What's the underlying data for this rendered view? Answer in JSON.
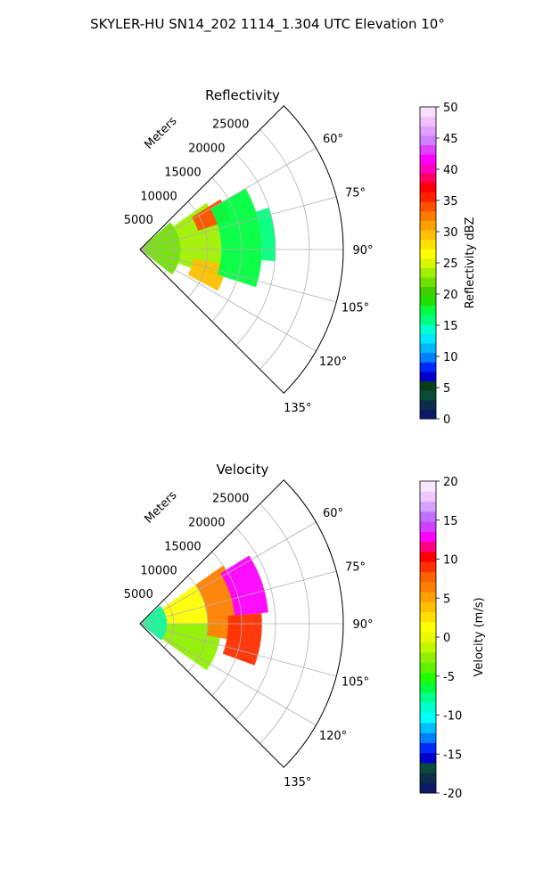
{
  "suptitle": "SKYLER-HU  SN14_202  1114_1.304 UTC Elevation 10°",
  "colors": {
    "refl_scale": [
      "#0a1a66",
      "#0b2e4a",
      "#0c4a3a",
      "#0a3f1a",
      "#0000c8",
      "#0028ff",
      "#0080ff",
      "#00b8ff",
      "#00e6ff",
      "#00ffd0",
      "#00ff80",
      "#00ff40",
      "#20e000",
      "#40d000",
      "#70e000",
      "#a0f000",
      "#d8f800",
      "#ffff00",
      "#ffe000",
      "#ffc000",
      "#ffa000",
      "#ff7800",
      "#ff5000",
      "#ff2000",
      "#ff0000",
      "#ff0060",
      "#ff00c0",
      "#ff00ff",
      "#e040ff",
      "#d080ff",
      "#e0a0ff",
      "#f0c0ff",
      "#f8e0ff"
    ],
    "vel_scale": [
      "#0a1a66",
      "#0b2e4a",
      "#0c4a3a",
      "#0000c8",
      "#0028ff",
      "#0080ff",
      "#00c0ff",
      "#00ffff",
      "#00ffd0",
      "#00ff90",
      "#00ff40",
      "#20ff00",
      "#60f000",
      "#90f000",
      "#c0f800",
      "#e8f800",
      "#ffff00",
      "#ffe000",
      "#ffc000",
      "#ffa000",
      "#ff8000",
      "#ff6000",
      "#ff3000",
      "#ff0000",
      "#ff0080",
      "#ff00ff",
      "#d040ff",
      "#c070ff",
      "#d8a0ff",
      "#f0c8ff",
      "#f8e8ff"
    ]
  },
  "chart_data": [
    {
      "type": "heatmap",
      "projection": "polar-sector",
      "title": "Reflectivity",
      "radial_label": "Meters",
      "radial_ticks": [
        "5000",
        "10000",
        "15000",
        "20000",
        "25000"
      ],
      "angle_ticks": [
        "60°",
        "75°",
        "90°",
        "105°",
        "120°",
        "135°"
      ],
      "angle_range_deg": [
        45,
        135
      ],
      "range_max_m": 30000,
      "colorbar": {
        "label": "Reflectivity dBZ",
        "range": [
          0,
          50
        ],
        "ticks": [
          "0",
          "5",
          "10",
          "15",
          "20",
          "25",
          "30",
          "35",
          "40",
          "45",
          "50"
        ]
      },
      "echoes": [
        {
          "az_start": 48,
          "az_end": 128,
          "r_start_m": 0,
          "r_end_m": 6000,
          "dbz": 22
        },
        {
          "az_start": 55,
          "az_end": 110,
          "r_start_m": 6000,
          "r_end_m": 12000,
          "dbz": 24
        },
        {
          "az_start": 58,
          "az_end": 72,
          "r_start_m": 9000,
          "r_end_m": 14000,
          "dbz": 34
        },
        {
          "az_start": 100,
          "az_end": 118,
          "r_start_m": 8000,
          "r_end_m": 13000,
          "dbz": 30
        },
        {
          "az_start": 60,
          "az_end": 108,
          "r_start_m": 12000,
          "r_end_m": 18000,
          "dbz": 18
        },
        {
          "az_start": 72,
          "az_end": 95,
          "r_start_m": 18000,
          "r_end_m": 20000,
          "dbz": 16
        }
      ]
    },
    {
      "type": "heatmap",
      "projection": "polar-sector",
      "title": "Velocity",
      "radial_label": "Meters",
      "radial_ticks": [
        "5000",
        "10000",
        "15000",
        "20000",
        "25000"
      ],
      "angle_ticks": [
        "60°",
        "75°",
        "90°",
        "105°",
        "120°",
        "135°"
      ],
      "angle_range_deg": [
        45,
        135
      ],
      "range_max_m": 30000,
      "colorbar": {
        "label": "Velocity (m/s)",
        "range": [
          -20,
          20
        ],
        "ticks": [
          "-20",
          "-15",
          "-10",
          "-5",
          "0",
          "5",
          "10",
          "15",
          "20"
        ]
      },
      "echoes": [
        {
          "az_start": 48,
          "az_end": 128,
          "r_start_m": 0,
          "r_end_m": 4000,
          "ms": -8
        },
        {
          "az_start": 90,
          "az_end": 125,
          "r_start_m": 4000,
          "r_end_m": 12000,
          "ms": -3
        },
        {
          "az_start": 55,
          "az_end": 90,
          "r_start_m": 4000,
          "r_end_m": 10000,
          "ms": 1
        },
        {
          "az_start": 55,
          "az_end": 100,
          "r_start_m": 10000,
          "r_end_m": 15000,
          "ms": 7
        },
        {
          "az_start": 58,
          "az_end": 85,
          "r_start_m": 14000,
          "r_end_m": 19000,
          "ms": 13
        },
        {
          "az_start": 85,
          "az_end": 110,
          "r_start_m": 13000,
          "r_end_m": 18000,
          "ms": 9
        }
      ]
    }
  ]
}
